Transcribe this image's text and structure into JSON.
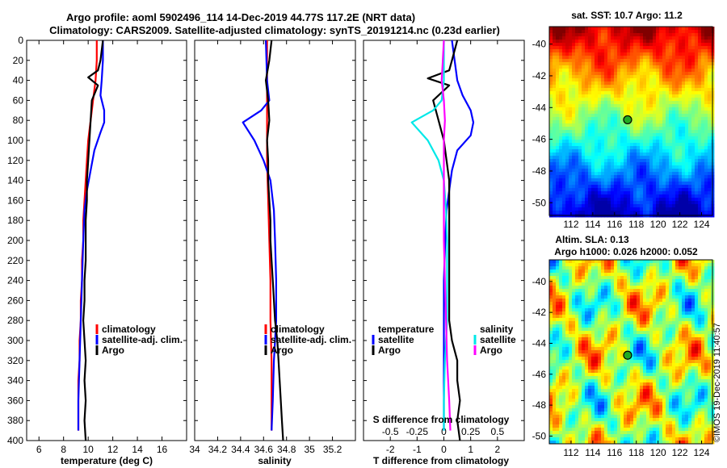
{
  "title": {
    "line1": "Argo profile: aoml 5902496_114 14-Dec-2019 44.77S 117.2E (NRT data)",
    "line2": "Climatology: CARS2009. Satellite-adjusted climatology: synTS_20191214.nc (0.23d earlier)"
  },
  "colors": {
    "climatology": "#ff0000",
    "satellite": "#0000ff",
    "argo": "#000000",
    "sal_satellite": "#00e8e8",
    "sal_climatology": "#ff00ff"
  },
  "chart_data": [
    {
      "type": "line",
      "name": "temperature-profile",
      "xlabel": "temperature (deg C)",
      "ylabel": "",
      "xlim": [
        5,
        18
      ],
      "ylim": [
        400,
        0
      ],
      "xticks": [
        "6",
        "8",
        "10",
        "12",
        "14",
        "16"
      ],
      "xtick_values": [
        6,
        8,
        10,
        12,
        14,
        16
      ],
      "yticks": [
        "0",
        "20",
        "40",
        "60",
        "80",
        "100",
        "120",
        "140",
        "160",
        "180",
        "200",
        "220",
        "240",
        "260",
        "280",
        "300",
        "320",
        "340",
        "360",
        "380",
        "400"
      ],
      "legend": [
        "climatology",
        "satellite-adj. clim.",
        "Argo"
      ],
      "series": [
        {
          "name": "climatology",
          "color": "#ff0000",
          "points": [
            [
              10.7,
              0
            ],
            [
              10.7,
              20
            ],
            [
              10.6,
              40
            ],
            [
              10.4,
              60
            ],
            [
              10.2,
              80
            ],
            [
              10.0,
              100
            ],
            [
              9.9,
              120
            ],
            [
              9.8,
              140
            ],
            [
              9.7,
              160
            ],
            [
              9.6,
              180
            ],
            [
              9.6,
              200
            ],
            [
              9.5,
              220
            ],
            [
              9.5,
              240
            ],
            [
              9.4,
              260
            ],
            [
              9.4,
              280
            ],
            [
              9.3,
              300
            ],
            [
              9.3,
              320
            ],
            [
              9.2,
              340
            ],
            [
              9.2,
              360
            ],
            [
              9.2,
              380
            ],
            [
              9.2,
              390
            ]
          ]
        },
        {
          "name": "satellite-adj. clim.",
          "color": "#0000ff",
          "points": [
            [
              11.2,
              0
            ],
            [
              11.2,
              20
            ],
            [
              11.1,
              40
            ],
            [
              11.0,
              55
            ],
            [
              11.3,
              70
            ],
            [
              11.3,
              82
            ],
            [
              11.0,
              92
            ],
            [
              10.5,
              110
            ],
            [
              10.2,
              130
            ],
            [
              9.9,
              150
            ],
            [
              9.7,
              170
            ],
            [
              9.6,
              200
            ],
            [
              9.5,
              240
            ],
            [
              9.4,
              280
            ],
            [
              9.3,
              320
            ],
            [
              9.2,
              360
            ],
            [
              9.2,
              390
            ]
          ]
        },
        {
          "name": "Argo",
          "color": "#000000",
          "points": [
            [
              11.2,
              0
            ],
            [
              11.0,
              20
            ],
            [
              10.8,
              30
            ],
            [
              10.0,
              37
            ],
            [
              10.8,
              45
            ],
            [
              10.3,
              60
            ],
            [
              10.2,
              80
            ],
            [
              10.1,
              100
            ],
            [
              10.0,
              120
            ],
            [
              9.9,
              140
            ],
            [
              9.9,
              160
            ],
            [
              9.8,
              180
            ],
            [
              9.8,
              200
            ],
            [
              9.8,
              220
            ],
            [
              9.7,
              240
            ],
            [
              9.7,
              260
            ],
            [
              9.6,
              280
            ],
            [
              9.7,
              300
            ],
            [
              9.8,
              320
            ],
            [
              9.7,
              340
            ],
            [
              9.8,
              360
            ],
            [
              9.7,
              380
            ],
            [
              9.8,
              400
            ]
          ]
        }
      ]
    },
    {
      "type": "line",
      "name": "salinity-profile",
      "xlabel": "salinity",
      "ylabel": "",
      "xlim": [
        34.0,
        35.4
      ],
      "ylim": [
        400,
        0
      ],
      "xticks": [
        "34",
        "34.2",
        "34.4",
        "34.6",
        "34.8",
        "35",
        "35.2"
      ],
      "xtick_values": [
        34.0,
        34.2,
        34.4,
        34.6,
        34.8,
        35.0,
        35.2
      ],
      "legend": [
        "climatology",
        "satellite-adj. clim.",
        "Argo"
      ],
      "series": [
        {
          "name": "climatology",
          "color": "#ff0000",
          "points": [
            [
              34.63,
              0
            ],
            [
              34.63,
              40
            ],
            [
              34.63,
              80
            ],
            [
              34.63,
              120
            ],
            [
              34.64,
              160
            ],
            [
              34.65,
              200
            ],
            [
              34.66,
              240
            ],
            [
              34.66,
              280
            ],
            [
              34.67,
              320
            ],
            [
              34.67,
              360
            ],
            [
              34.67,
              390
            ]
          ]
        },
        {
          "name": "satellite-adj. clim.",
          "color": "#0000ff",
          "points": [
            [
              34.62,
              0
            ],
            [
              34.63,
              40
            ],
            [
              34.65,
              60
            ],
            [
              34.58,
              70
            ],
            [
              34.42,
              82
            ],
            [
              34.52,
              100
            ],
            [
              34.6,
              120
            ],
            [
              34.66,
              140
            ],
            [
              34.69,
              170
            ],
            [
              34.7,
              200
            ],
            [
              34.71,
              240
            ],
            [
              34.71,
              280
            ],
            [
              34.69,
              320
            ],
            [
              34.68,
              360
            ],
            [
              34.67,
              390
            ]
          ]
        },
        {
          "name": "Argo",
          "color": "#000000",
          "points": [
            [
              34.67,
              0
            ],
            [
              34.65,
              20
            ],
            [
              34.62,
              40
            ],
            [
              34.64,
              60
            ],
            [
              34.65,
              80
            ],
            [
              34.63,
              100
            ],
            [
              34.64,
              120
            ],
            [
              34.64,
              140
            ],
            [
              34.65,
              160
            ],
            [
              34.66,
              180
            ],
            [
              34.66,
              200
            ],
            [
              34.67,
              220
            ],
            [
              34.68,
              240
            ],
            [
              34.69,
              260
            ],
            [
              34.7,
              280
            ],
            [
              34.72,
              300
            ],
            [
              34.73,
              320
            ],
            [
              34.74,
              340
            ],
            [
              34.75,
              360
            ],
            [
              34.76,
              380
            ],
            [
              34.77,
              400
            ]
          ]
        }
      ]
    },
    {
      "type": "line",
      "name": "difference-profile",
      "xlabel": "T difference from climatology",
      "xlabel_top": "S difference from climatology",
      "ylabel": "",
      "xlim": [
        -3,
        3
      ],
      "ylim": [
        400,
        0
      ],
      "xticks": [
        "-2",
        "-1",
        "0",
        "1",
        "2"
      ],
      "xtick_values": [
        -2,
        -1,
        0,
        1,
        2
      ],
      "xticks_top": [
        "-0.5",
        "-0.25",
        "0",
        "0.25",
        "0.5"
      ],
      "xtick_top_values": [
        -0.5,
        -0.25,
        0,
        0.25,
        0.5
      ],
      "legend_temperature_title": "temperature",
      "legend_temperature": [
        "satellite",
        "Argo"
      ],
      "legend_salinity_title": "salinity",
      "legend_salinity": [
        "satellite",
        "Argo"
      ],
      "series": [
        {
          "name": "T satellite",
          "color": "#0000ff",
          "points": [
            [
              0.3,
              0
            ],
            [
              0.4,
              20
            ],
            [
              0.5,
              40
            ],
            [
              0.7,
              55
            ],
            [
              1.0,
              70
            ],
            [
              1.1,
              82
            ],
            [
              1.0,
              95
            ],
            [
              0.5,
              110
            ],
            [
              0.3,
              130
            ],
            [
              0.2,
              150
            ],
            [
              0.1,
              170
            ],
            [
              0.05,
              200
            ],
            [
              0.0,
              240
            ],
            [
              0.0,
              280
            ],
            [
              0.0,
              320
            ],
            [
              0.0,
              360
            ],
            [
              0.0,
              390
            ]
          ]
        },
        {
          "name": "T Argo",
          "color": "#000000",
          "points": [
            [
              0.5,
              0
            ],
            [
              0.3,
              20
            ],
            [
              0.2,
              30
            ],
            [
              -0.6,
              38
            ],
            [
              0.2,
              45
            ],
            [
              -0.4,
              60
            ],
            [
              -0.2,
              80
            ],
            [
              0.0,
              100
            ],
            [
              0.1,
              120
            ],
            [
              0.2,
              140
            ],
            [
              0.2,
              160
            ],
            [
              0.2,
              180
            ],
            [
              0.2,
              200
            ],
            [
              0.2,
              220
            ],
            [
              0.2,
              240
            ],
            [
              0.2,
              260
            ],
            [
              0.2,
              280
            ],
            [
              0.3,
              300
            ],
            [
              0.5,
              320
            ],
            [
              0.5,
              340
            ],
            [
              0.6,
              360
            ],
            [
              0.5,
              380
            ],
            [
              0.6,
              400
            ]
          ]
        },
        {
          "name": "S satellite",
          "color": "#00e8e8",
          "points": [
            [
              0.0,
              0
            ],
            [
              0.0,
              40
            ],
            [
              -0.02,
              60
            ],
            [
              -0.1,
              70
            ],
            [
              -0.3,
              82
            ],
            [
              -0.15,
              100
            ],
            [
              -0.05,
              120
            ],
            [
              0.0,
              140
            ],
            [
              0.02,
              170
            ],
            [
              0.03,
              200
            ],
            [
              0.03,
              240
            ],
            [
              0.03,
              280
            ],
            [
              0.01,
              320
            ],
            [
              0.0,
              360
            ],
            [
              0.0,
              390
            ]
          ]
        },
        {
          "name": "S Argo",
          "color": "#ff00ff",
          "points": [
            [
              0.0,
              0
            ],
            [
              -0.01,
              20
            ],
            [
              -0.02,
              40
            ],
            [
              0.0,
              60
            ],
            [
              0.01,
              80
            ],
            [
              0.0,
              100
            ],
            [
              0.0,
              120
            ],
            [
              0.0,
              160
            ],
            [
              0.0,
              200
            ],
            [
              0.01,
              240
            ],
            [
              0.02,
              280
            ],
            [
              0.03,
              320
            ],
            [
              0.05,
              360
            ],
            [
              0.06,
              390
            ]
          ]
        }
      ]
    },
    {
      "type": "heatmap",
      "name": "sst-map",
      "title": "sat. SST: 10.7 Argo: 11.2",
      "xticks": [
        "112",
        "114",
        "116",
        "118",
        "120",
        "122",
        "124"
      ],
      "xtick_values": [
        112,
        114,
        116,
        118,
        120,
        122,
        124
      ],
      "yticks": [
        "-40",
        "-42",
        "-44",
        "-46",
        "-48",
        "-50"
      ],
      "ytick_values": [
        -40,
        -42,
        -44,
        -46,
        -48,
        -50
      ],
      "xlim": [
        110,
        125
      ],
      "ylim": [
        -50.8,
        -38.9
      ],
      "marker": {
        "lon": 117.2,
        "lat": -44.77
      }
    },
    {
      "type": "heatmap",
      "name": "sla-map",
      "title_line1": "Altim. SLA: 0.13",
      "title_line2": "Argo h1000: 0.026 h2000: 0.052",
      "xticks": [
        "112",
        "114",
        "116",
        "118",
        "120",
        "122",
        "124"
      ],
      "xtick_values": [
        112,
        114,
        116,
        118,
        120,
        122,
        124
      ],
      "yticks": [
        "-40",
        "-42",
        "-44",
        "-46",
        "-48",
        "-50"
      ],
      "ytick_values": [
        -40,
        -42,
        -44,
        -46,
        -48,
        -50
      ],
      "xlim": [
        110,
        125
      ],
      "ylim": [
        -50.5,
        -38.6
      ],
      "marker": {
        "lon": 117.2,
        "lat": -44.77
      }
    }
  ],
  "credit": "©IMOS 19-Dec-2019 11:40:57"
}
